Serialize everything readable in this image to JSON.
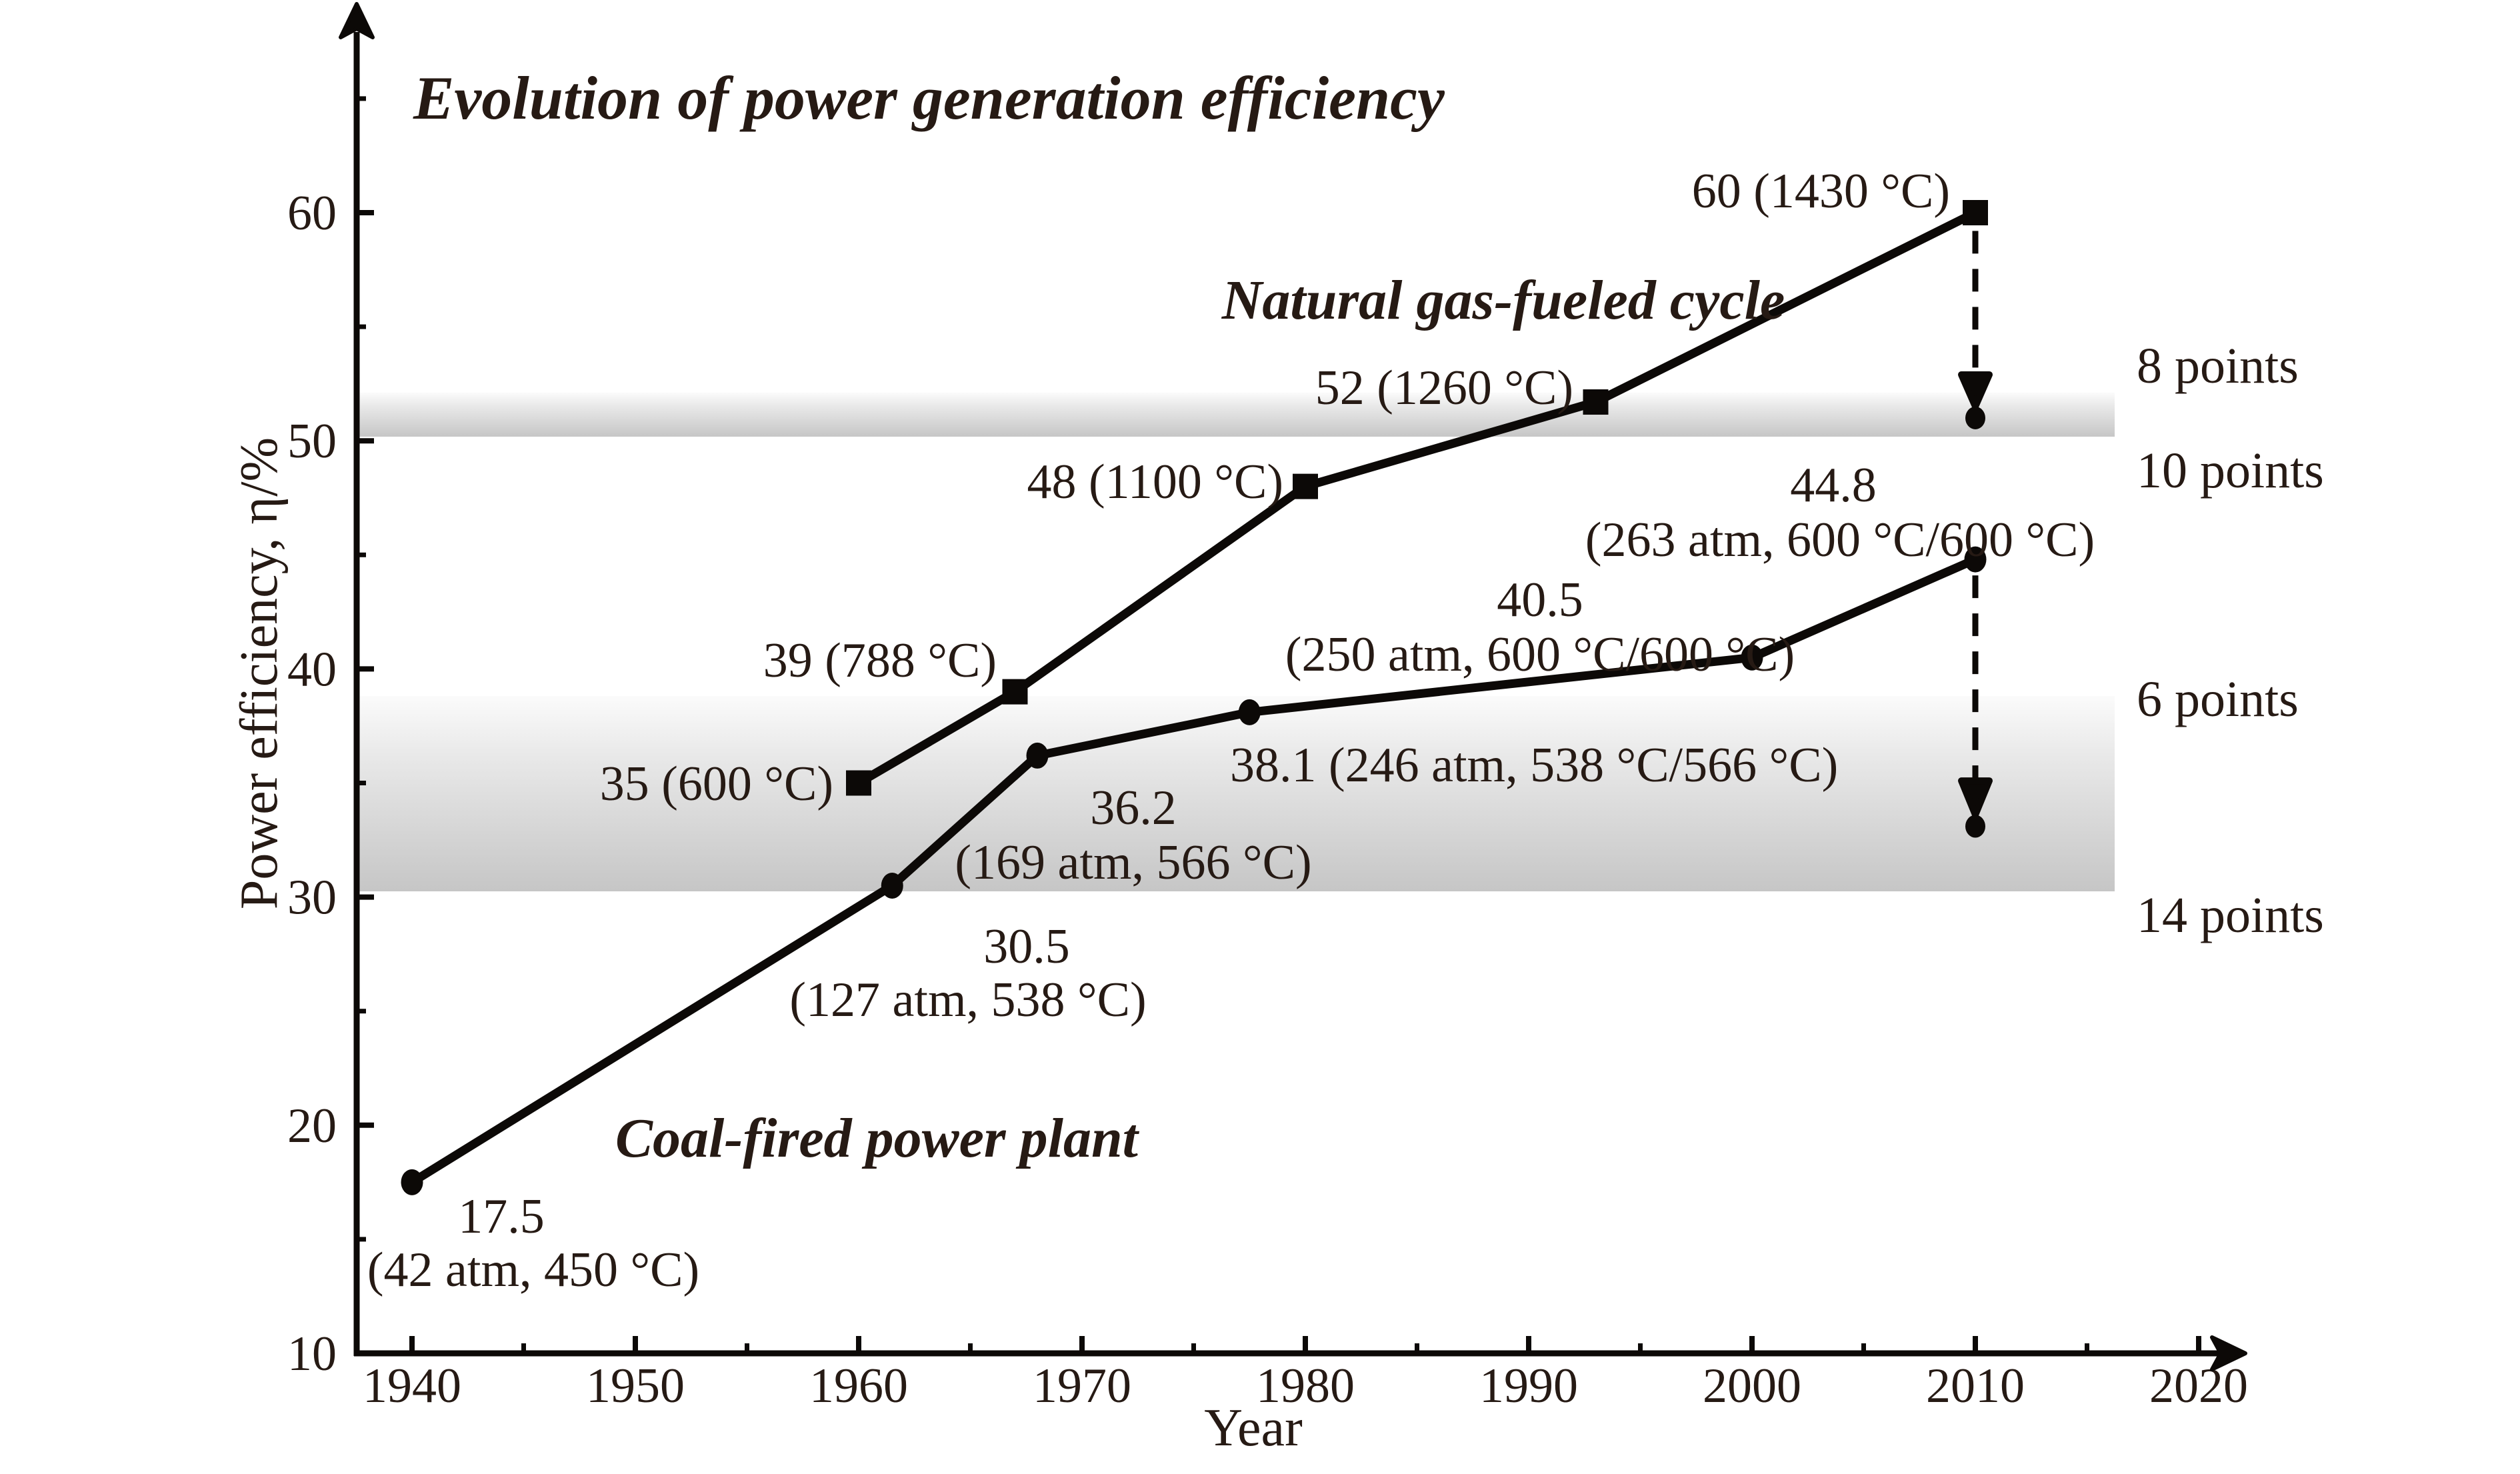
{
  "colors": {
    "ink": "#0c0907",
    "text": "#261a14",
    "band_top": "#fbfbfb",
    "band_mid": "#e9e9e9",
    "band_bottom": "#c6c6c6",
    "background": "#ffffff"
  },
  "chart_data": {
    "type": "line",
    "title": "Evolution of power generation efficiency",
    "xlabel": "Year",
    "ylabel": "Power efficiency, η/%",
    "xlim": [
      1937,
      2022
    ],
    "ylim": [
      10,
      67
    ],
    "grid": false,
    "legend": "inline-labels",
    "x_axis": {
      "label": "Year",
      "tick_labels": [
        1940,
        1950,
        1960,
        1970,
        1980,
        1990,
        2000,
        2010,
        2020
      ],
      "major_ticks": [
        1940,
        1950,
        1960,
        1970,
        1980,
        1990,
        2000,
        2010,
        2020
      ],
      "minor_ticks": [
        1945,
        1955,
        1965,
        1975,
        1985,
        1995,
        2005,
        2015
      ]
    },
    "y_axis": {
      "label": "Power efficiency, η/%",
      "tick_labels": [
        10,
        20,
        30,
        40,
        50,
        60
      ],
      "major_ticks": [
        20,
        30,
        40,
        50,
        60
      ],
      "minor_ticks": [
        15,
        25,
        35,
        45,
        55,
        65
      ]
    },
    "series": [
      {
        "name": "Natural gas-fueled cycle",
        "marker": "square",
        "points": [
          {
            "x": 1960,
            "y": 35,
            "label": "35 (600 °C)"
          },
          {
            "x": 1967,
            "y": 39,
            "label": "39 (788 °C)"
          },
          {
            "x": 1980,
            "y": 48,
            "label": "48 (1100 °C)"
          },
          {
            "x": 1993,
            "y": 51.7,
            "label": "52 (1260 °C)"
          },
          {
            "x": 2010,
            "y": 60,
            "label": "60 (1430 °C)"
          }
        ]
      },
      {
        "name": "Coal-fired power plant",
        "marker": "circle",
        "points": [
          {
            "x": 1940,
            "y": 17.5,
            "value_label": "17.5",
            "cond_label": "(42 atm, 450 °C)"
          },
          {
            "x": 1961.5,
            "y": 30.5,
            "value_label": "30.5",
            "cond_label": "(127 atm, 538 °C)"
          },
          {
            "x": 1968,
            "y": 36.2,
            "value_label": "36.2",
            "cond_label": "(169 atm, 566 °C)"
          },
          {
            "x": 1977.5,
            "y": 38.1,
            "label": "38.1 (246 atm, 538 °C/566 °C)"
          },
          {
            "x": 2000,
            "y": 40.5,
            "value_label": "40.5",
            "cond_label": "(250 atm, 600 °C/600 °C)"
          },
          {
            "x": 2010,
            "y": 44.8,
            "value_label": "44.8",
            "cond_label": "(263 atm, 600 °C/600 °C)"
          }
        ]
      }
    ],
    "drops": [
      {
        "x": 2010,
        "from": 59.2,
        "head_top": 52.9,
        "tip": 51.5,
        "dot": 51.0
      },
      {
        "x": 2010,
        "from": 44.1,
        "head_top": 35.1,
        "tip": 33.6,
        "dot": 33.1
      }
    ],
    "bands": [
      {
        "value_top": 52,
        "value_bottom": 50,
        "label_above": "8 points",
        "label_below": "10 points"
      },
      {
        "value_top": 38.8,
        "value_bottom": 30.8,
        "label_above": "6 points",
        "label_below": "14 points"
      }
    ]
  }
}
